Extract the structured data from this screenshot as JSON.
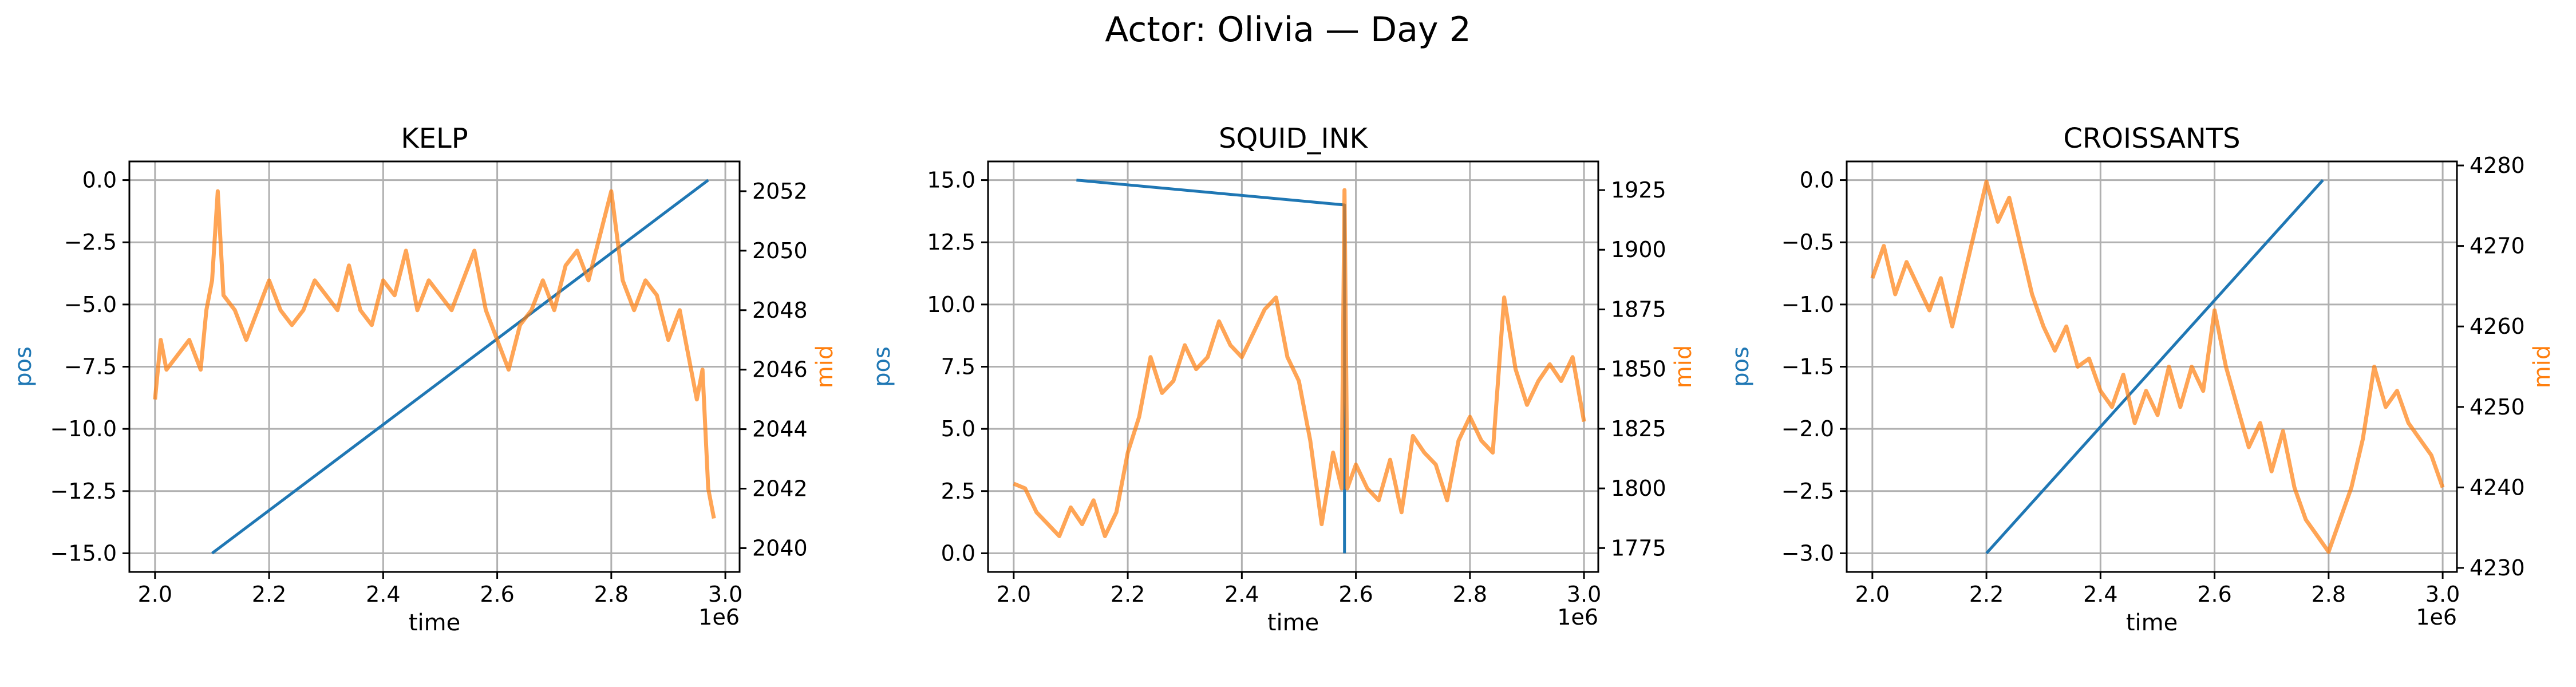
{
  "figure": {
    "suptitle": "Actor: Olivia — Day 2"
  },
  "colors": {
    "pos": "#1f77b4",
    "mid": "#ff7f0e"
  },
  "chart_data": [
    {
      "type": "line",
      "title": "KELP",
      "xlabel": "time",
      "ylabel_left": "pos",
      "ylabel_right": "mid",
      "x_offset_label": "1e6",
      "xlim": [
        1.955,
        3.025
      ],
      "ylim_left": [
        -15.75,
        0.75
      ],
      "ylim_right": [
        2039.2,
        2053.0
      ],
      "x_ticks": [
        2.0,
        2.2,
        2.4,
        2.6,
        2.8,
        3.0
      ],
      "x_tick_labels": [
        "2.0",
        "2.2",
        "2.4",
        "2.6",
        "2.8",
        "3.0"
      ],
      "y_left_ticks": [
        0.0,
        -2.5,
        -5.0,
        -7.5,
        -10.0,
        -12.5,
        -15.0
      ],
      "y_left_tick_labels": [
        "0.0",
        "−2.5",
        "−5.0",
        "−7.5",
        "−10.0",
        "−12.5",
        "−15.0"
      ],
      "y_right_ticks": [
        2040,
        2042,
        2044,
        2046,
        2048,
        2050,
        2052
      ],
      "y_right_tick_labels": [
        "2040",
        "2042",
        "2044",
        "2046",
        "2048",
        "2050",
        "2052"
      ],
      "grid": true,
      "series": [
        {
          "axis": "left",
          "color": "#1f77b4",
          "x": [
            2.1,
            2.97
          ],
          "y": [
            -15.0,
            0.0
          ]
        },
        {
          "axis": "right",
          "color": "#ff7f0e",
          "x": [
            2.0,
            2.01,
            2.02,
            2.04,
            2.06,
            2.08,
            2.09,
            2.1,
            2.11,
            2.12,
            2.14,
            2.16,
            2.18,
            2.2,
            2.22,
            2.24,
            2.26,
            2.28,
            2.3,
            2.32,
            2.34,
            2.36,
            2.38,
            2.4,
            2.42,
            2.44,
            2.46,
            2.48,
            2.5,
            2.52,
            2.54,
            2.56,
            2.58,
            2.6,
            2.62,
            2.64,
            2.66,
            2.68,
            2.7,
            2.72,
            2.74,
            2.76,
            2.78,
            2.8,
            2.82,
            2.84,
            2.86,
            2.88,
            2.9,
            2.92,
            2.94,
            2.95,
            2.96,
            2.97,
            2.98
          ],
          "y": [
            2045,
            2047,
            2046,
            2046.5,
            2047,
            2046,
            2048,
            2049,
            2052,
            2048.5,
            2048,
            2047,
            2048,
            2049,
            2048,
            2047.5,
            2048,
            2049,
            2048.5,
            2048,
            2049.5,
            2048,
            2047.5,
            2049,
            2048.5,
            2050,
            2048,
            2049,
            2048.5,
            2048,
            2049,
            2050,
            2048,
            2047,
            2046,
            2047.5,
            2048,
            2049,
            2048,
            2049.5,
            2050,
            2049,
            2050.5,
            2052,
            2049,
            2048,
            2049,
            2048.5,
            2047,
            2048,
            2046,
            2045,
            2046,
            2042,
            2041
          ]
        }
      ]
    },
    {
      "type": "line",
      "title": "SQUID_INK",
      "xlabel": "time",
      "ylabel_left": "pos",
      "ylabel_right": "mid",
      "x_offset_label": "1e6",
      "xlim": [
        1.955,
        3.025
      ],
      "ylim_left": [
        -0.75,
        15.75
      ],
      "ylim_right": [
        1765,
        1937
      ],
      "x_ticks": [
        2.0,
        2.2,
        2.4,
        2.6,
        2.8,
        3.0
      ],
      "x_tick_labels": [
        "2.0",
        "2.2",
        "2.4",
        "2.6",
        "2.8",
        "3.0"
      ],
      "y_left_ticks": [
        0.0,
        2.5,
        5.0,
        7.5,
        10.0,
        12.5,
        15.0
      ],
      "y_left_tick_labels": [
        "0.0",
        "2.5",
        "5.0",
        "7.5",
        "10.0",
        "12.5",
        "15.0"
      ],
      "y_right_ticks": [
        1775,
        1800,
        1825,
        1850,
        1875,
        1900,
        1925
      ],
      "y_right_tick_labels": [
        "1775",
        "1800",
        "1825",
        "1850",
        "1875",
        "1900",
        "1925"
      ],
      "grid": true,
      "series": [
        {
          "axis": "left",
          "color": "#1f77b4",
          "x": [
            2.11,
            2.58,
            2.58,
            2.58
          ],
          "y": [
            15.0,
            14.0,
            0.0,
            0.0
          ]
        },
        {
          "axis": "right",
          "color": "#ff7f0e",
          "x": [
            2.0,
            2.02,
            2.04,
            2.06,
            2.08,
            2.1,
            2.12,
            2.14,
            2.16,
            2.18,
            2.2,
            2.22,
            2.24,
            2.26,
            2.28,
            2.3,
            2.32,
            2.34,
            2.36,
            2.38,
            2.4,
            2.42,
            2.44,
            2.46,
            2.48,
            2.5,
            2.52,
            2.54,
            2.56,
            2.575,
            2.58,
            2.585,
            2.6,
            2.62,
            2.64,
            2.66,
            2.68,
            2.7,
            2.72,
            2.74,
            2.76,
            2.78,
            2.8,
            2.82,
            2.84,
            2.86,
            2.88,
            2.9,
            2.92,
            2.94,
            2.96,
            2.98,
            3.0
          ],
          "y": [
            1802,
            1800,
            1790,
            1785,
            1780,
            1792,
            1785,
            1795,
            1780,
            1790,
            1815,
            1830,
            1855,
            1840,
            1845,
            1860,
            1850,
            1855,
            1870,
            1860,
            1855,
            1865,
            1875,
            1880,
            1855,
            1845,
            1820,
            1785,
            1815,
            1800,
            1925,
            1800,
            1810,
            1800,
            1795,
            1812,
            1790,
            1822,
            1815,
            1810,
            1795,
            1820,
            1830,
            1820,
            1815,
            1880,
            1850,
            1835,
            1845,
            1852,
            1845,
            1855,
            1828
          ]
        }
      ]
    },
    {
      "type": "line",
      "title": "CROISSANTS",
      "xlabel": "time",
      "ylabel_left": "pos",
      "ylabel_right": "mid",
      "x_offset_label": "1e6",
      "xlim": [
        1.955,
        3.025
      ],
      "ylim_left": [
        -3.15,
        0.15
      ],
      "ylim_right": [
        4229.5,
        4280.5
      ],
      "x_ticks": [
        2.0,
        2.2,
        2.4,
        2.6,
        2.8,
        3.0
      ],
      "x_tick_labels": [
        "2.0",
        "2.2",
        "2.4",
        "2.6",
        "2.8",
        "3.0"
      ],
      "y_left_ticks": [
        0.0,
        -0.5,
        -1.0,
        -1.5,
        -2.0,
        -2.5,
        -3.0
      ],
      "y_left_tick_labels": [
        "0.0",
        "−0.5",
        "−1.0",
        "−1.5",
        "−2.0",
        "−2.5",
        "−3.0"
      ],
      "y_right_ticks": [
        4230,
        4240,
        4250,
        4260,
        4270,
        4280
      ],
      "y_right_tick_labels": [
        "4230",
        "4240",
        "4250",
        "4260",
        "4270",
        "4280"
      ],
      "grid": true,
      "series": [
        {
          "axis": "left",
          "color": "#1f77b4",
          "x": [
            2.2,
            2.79
          ],
          "y": [
            -3.0,
            0.0
          ]
        },
        {
          "axis": "right",
          "color": "#ff7f0e",
          "x": [
            2.0,
            2.02,
            2.04,
            2.06,
            2.08,
            2.1,
            2.12,
            2.14,
            2.16,
            2.18,
            2.2,
            2.22,
            2.24,
            2.26,
            2.28,
            2.3,
            2.32,
            2.34,
            2.36,
            2.38,
            2.4,
            2.42,
            2.44,
            2.46,
            2.48,
            2.5,
            2.52,
            2.54,
            2.56,
            2.58,
            2.6,
            2.62,
            2.64,
            2.66,
            2.68,
            2.7,
            2.72,
            2.74,
            2.76,
            2.78,
            2.8,
            2.82,
            2.84,
            2.86,
            2.88,
            2.9,
            2.92,
            2.94,
            2.96,
            2.98,
            3.0
          ],
          "y": [
            4266,
            4270,
            4264,
            4268,
            4265,
            4262,
            4266,
            4260,
            4266,
            4272,
            4278,
            4273,
            4276,
            4270,
            4264,
            4260,
            4257,
            4260,
            4255,
            4256,
            4252,
            4250,
            4254,
            4248,
            4252,
            4249,
            4255,
            4250,
            4255,
            4252,
            4262,
            4255,
            4250,
            4245,
            4248,
            4242,
            4247,
            4240,
            4236,
            4234,
            4232,
            4236,
            4240,
            4246,
            4255,
            4250,
            4252,
            4248,
            4246,
            4244,
            4240
          ]
        }
      ]
    }
  ]
}
